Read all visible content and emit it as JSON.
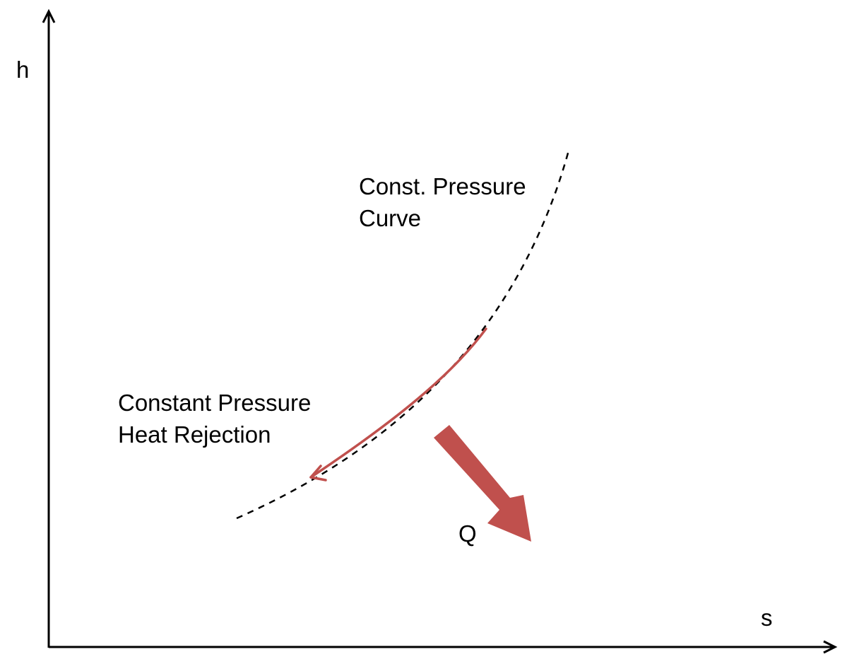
{
  "axes": {
    "y_label": "h",
    "x_label": "s"
  },
  "labels": {
    "curve_line1": "Const. Pressure",
    "curve_line2": "Curve",
    "process_line1": "Constant Pressure",
    "process_line2": "Heat Rejection",
    "heat": "Q"
  },
  "colors": {
    "axis": "#000000",
    "dashed_curve": "#000000",
    "process_arrow": "#c0504d",
    "heat_arrow": "#c0504d"
  }
}
